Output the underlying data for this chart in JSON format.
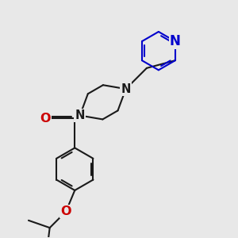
{
  "bg_color": "#e8e8e8",
  "bond_color": "#1a1a1a",
  "N_color": "#0000cc",
  "O_color": "#cc0000",
  "lw": 1.5,
  "dbo": 0.06,
  "fs": 10.5,
  "xlim": [
    -1.5,
    5.5
  ],
  "ylim": [
    -3.5,
    4.5
  ]
}
